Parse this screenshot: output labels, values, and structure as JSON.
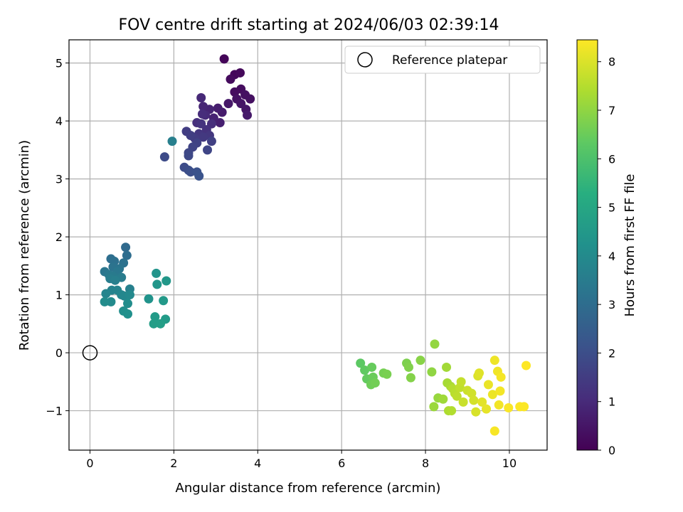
{
  "chart_data": {
    "type": "scatter",
    "title": "FOV centre drift starting at 2024/06/03 02:39:14",
    "xlabel": "Angular distance from reference (arcmin)",
    "ylabel": "Rotation from reference (arcmin)",
    "xlim": [
      -0.5,
      10.9
    ],
    "ylim": [
      -1.68,
      5.4
    ],
    "xticks": [
      0,
      2,
      4,
      6,
      8,
      10
    ],
    "yticks": [
      -1,
      0,
      1,
      2,
      3,
      4,
      5
    ],
    "xtick_labels": [
      "0",
      "2",
      "4",
      "6",
      "8",
      "10"
    ],
    "ytick_labels": [
      "−1",
      "0",
      "1",
      "2",
      "3",
      "4",
      "5"
    ],
    "grid": true,
    "legend": {
      "position": "top-right",
      "entries": [
        "Reference platepar"
      ]
    },
    "colormap": "viridis",
    "colorbar": {
      "label": "Hours from first FF file",
      "range": [
        0,
        8.45
      ],
      "ticks": [
        0,
        1,
        2,
        3,
        4,
        5,
        6,
        7,
        8
      ],
      "tick_labels": [
        "0",
        "1",
        "2",
        "3",
        "4",
        "5",
        "6",
        "7",
        "8"
      ]
    },
    "reference_point": {
      "x": 0,
      "y": 0
    },
    "points": [
      {
        "x": 3.2,
        "y": 5.07,
        "h": 0.1
      },
      {
        "x": 3.45,
        "y": 4.8,
        "h": 0.15
      },
      {
        "x": 3.58,
        "y": 4.83,
        "h": 0.2
      },
      {
        "x": 3.35,
        "y": 4.72,
        "h": 0.25
      },
      {
        "x": 3.6,
        "y": 4.55,
        "h": 0.3
      },
      {
        "x": 3.45,
        "y": 4.5,
        "h": 0.3
      },
      {
        "x": 3.7,
        "y": 4.45,
        "h": 0.35
      },
      {
        "x": 3.82,
        "y": 4.38,
        "h": 0.35
      },
      {
        "x": 3.5,
        "y": 4.38,
        "h": 0.4
      },
      {
        "x": 3.6,
        "y": 4.3,
        "h": 0.45
      },
      {
        "x": 3.72,
        "y": 4.2,
        "h": 0.5
      },
      {
        "x": 3.3,
        "y": 4.3,
        "h": 0.55
      },
      {
        "x": 3.75,
        "y": 4.1,
        "h": 0.6
      },
      {
        "x": 3.15,
        "y": 4.15,
        "h": 0.65
      },
      {
        "x": 3.05,
        "y": 4.22,
        "h": 0.7
      },
      {
        "x": 3.1,
        "y": 3.97,
        "h": 0.75
      },
      {
        "x": 2.95,
        "y": 4.05,
        "h": 0.8
      },
      {
        "x": 2.85,
        "y": 4.2,
        "h": 0.85
      },
      {
        "x": 2.7,
        "y": 4.25,
        "h": 0.9
      },
      {
        "x": 2.65,
        "y": 4.4,
        "h": 0.95
      },
      {
        "x": 2.75,
        "y": 4.1,
        "h": 1.0
      },
      {
        "x": 2.68,
        "y": 4.12,
        "h": 1.05
      },
      {
        "x": 2.9,
        "y": 3.95,
        "h": 1.1
      },
      {
        "x": 2.55,
        "y": 3.97,
        "h": 1.15
      },
      {
        "x": 2.78,
        "y": 3.85,
        "h": 1.2
      },
      {
        "x": 2.65,
        "y": 3.95,
        "h": 1.25
      },
      {
        "x": 2.6,
        "y": 3.78,
        "h": 1.3
      },
      {
        "x": 2.85,
        "y": 3.75,
        "h": 1.35
      },
      {
        "x": 2.7,
        "y": 3.72,
        "h": 1.4
      },
      {
        "x": 2.5,
        "y": 3.7,
        "h": 1.45
      },
      {
        "x": 2.3,
        "y": 3.82,
        "h": 1.5
      },
      {
        "x": 2.4,
        "y": 3.75,
        "h": 1.55
      },
      {
        "x": 2.9,
        "y": 3.65,
        "h": 1.6
      },
      {
        "x": 2.55,
        "y": 3.62,
        "h": 1.65
      },
      {
        "x": 2.45,
        "y": 3.55,
        "h": 1.7
      },
      {
        "x": 2.8,
        "y": 3.5,
        "h": 1.75
      },
      {
        "x": 2.35,
        "y": 3.45,
        "h": 1.8
      },
      {
        "x": 2.35,
        "y": 3.4,
        "h": 1.85
      },
      {
        "x": 1.78,
        "y": 3.38,
        "h": 1.9
      },
      {
        "x": 2.25,
        "y": 3.2,
        "h": 1.95
      },
      {
        "x": 2.35,
        "y": 3.15,
        "h": 2.0
      },
      {
        "x": 2.4,
        "y": 3.12,
        "h": 2.05
      },
      {
        "x": 2.55,
        "y": 3.12,
        "h": 2.1
      },
      {
        "x": 2.6,
        "y": 3.05,
        "h": 2.15
      },
      {
        "x": 1.96,
        "y": 3.65,
        "h": 3.6
      },
      {
        "x": 0.85,
        "y": 1.82,
        "h": 2.9
      },
      {
        "x": 0.88,
        "y": 1.68,
        "h": 3.0
      },
      {
        "x": 0.5,
        "y": 1.62,
        "h": 3.05
      },
      {
        "x": 0.58,
        "y": 1.58,
        "h": 3.1
      },
      {
        "x": 0.8,
        "y": 1.55,
        "h": 3.15
      },
      {
        "x": 0.55,
        "y": 1.48,
        "h": 3.2
      },
      {
        "x": 0.7,
        "y": 1.45,
        "h": 3.25
      },
      {
        "x": 0.35,
        "y": 1.4,
        "h": 3.3
      },
      {
        "x": 0.65,
        "y": 1.4,
        "h": 3.35
      },
      {
        "x": 0.45,
        "y": 1.35,
        "h": 3.4
      },
      {
        "x": 0.55,
        "y": 1.32,
        "h": 3.45
      },
      {
        "x": 0.75,
        "y": 1.3,
        "h": 3.5
      },
      {
        "x": 0.48,
        "y": 1.28,
        "h": 3.55
      },
      {
        "x": 0.6,
        "y": 1.25,
        "h": 3.6
      },
      {
        "x": 0.95,
        "y": 1.1,
        "h": 3.65
      },
      {
        "x": 0.52,
        "y": 1.08,
        "h": 3.7
      },
      {
        "x": 0.65,
        "y": 1.08,
        "h": 3.75
      },
      {
        "x": 0.38,
        "y": 1.02,
        "h": 3.8
      },
      {
        "x": 0.75,
        "y": 1.0,
        "h": 3.85
      },
      {
        "x": 0.82,
        "y": 0.98,
        "h": 3.9
      },
      {
        "x": 0.95,
        "y": 1.0,
        "h": 3.95
      },
      {
        "x": 0.5,
        "y": 0.88,
        "h": 4.0
      },
      {
        "x": 0.35,
        "y": 0.88,
        "h": 4.05
      },
      {
        "x": 0.9,
        "y": 0.85,
        "h": 4.1
      },
      {
        "x": 0.8,
        "y": 0.72,
        "h": 4.15
      },
      {
        "x": 0.9,
        "y": 0.67,
        "h": 4.2
      },
      {
        "x": 1.4,
        "y": 0.93,
        "h": 4.3
      },
      {
        "x": 1.58,
        "y": 1.37,
        "h": 4.35
      },
      {
        "x": 1.6,
        "y": 1.18,
        "h": 4.4
      },
      {
        "x": 1.82,
        "y": 1.24,
        "h": 4.45
      },
      {
        "x": 1.75,
        "y": 0.9,
        "h": 4.5
      },
      {
        "x": 1.55,
        "y": 0.62,
        "h": 4.55
      },
      {
        "x": 1.8,
        "y": 0.58,
        "h": 4.6
      },
      {
        "x": 1.52,
        "y": 0.5,
        "h": 4.65
      },
      {
        "x": 1.68,
        "y": 0.5,
        "h": 4.7
      },
      {
        "x": 6.45,
        "y": -0.18,
        "h": 6.3
      },
      {
        "x": 6.55,
        "y": -0.3,
        "h": 6.35
      },
      {
        "x": 6.6,
        "y": -0.45,
        "h": 6.4
      },
      {
        "x": 6.72,
        "y": -0.25,
        "h": 6.45
      },
      {
        "x": 6.75,
        "y": -0.42,
        "h": 6.5
      },
      {
        "x": 6.7,
        "y": -0.55,
        "h": 6.55
      },
      {
        "x": 6.8,
        "y": -0.52,
        "h": 6.6
      },
      {
        "x": 7.0,
        "y": -0.35,
        "h": 6.65
      },
      {
        "x": 7.08,
        "y": -0.37,
        "h": 6.7
      },
      {
        "x": 7.55,
        "y": -0.18,
        "h": 6.75
      },
      {
        "x": 7.6,
        "y": -0.25,
        "h": 6.8
      },
      {
        "x": 7.65,
        "y": -0.43,
        "h": 6.85
      },
      {
        "x": 7.88,
        "y": -0.13,
        "h": 6.9
      },
      {
        "x": 8.15,
        "y": -0.33,
        "h": 7.0
      },
      {
        "x": 8.22,
        "y": 0.15,
        "h": 7.05
      },
      {
        "x": 8.3,
        "y": -0.78,
        "h": 7.1
      },
      {
        "x": 8.2,
        "y": -0.93,
        "h": 7.15
      },
      {
        "x": 8.42,
        "y": -0.8,
        "h": 7.2
      },
      {
        "x": 8.5,
        "y": -0.25,
        "h": 7.25
      },
      {
        "x": 8.52,
        "y": -0.52,
        "h": 7.3
      },
      {
        "x": 8.6,
        "y": -0.58,
        "h": 7.35
      },
      {
        "x": 8.55,
        "y": -1.0,
        "h": 7.4
      },
      {
        "x": 8.62,
        "y": -1.0,
        "h": 7.45
      },
      {
        "x": 8.65,
        "y": -0.62,
        "h": 7.5
      },
      {
        "x": 8.7,
        "y": -0.7,
        "h": 7.55
      },
      {
        "x": 8.75,
        "y": -0.75,
        "h": 7.6
      },
      {
        "x": 8.82,
        "y": -0.6,
        "h": 7.65
      },
      {
        "x": 8.85,
        "y": -0.5,
        "h": 7.7
      },
      {
        "x": 8.9,
        "y": -0.85,
        "h": 7.75
      },
      {
        "x": 9.0,
        "y": -0.65,
        "h": 7.8
      },
      {
        "x": 9.1,
        "y": -0.7,
        "h": 7.85
      },
      {
        "x": 9.15,
        "y": -0.82,
        "h": 7.9
      },
      {
        "x": 9.2,
        "y": -1.02,
        "h": 7.95
      },
      {
        "x": 9.25,
        "y": -0.4,
        "h": 8.0
      },
      {
        "x": 9.28,
        "y": -0.35,
        "h": 8.05
      },
      {
        "x": 9.35,
        "y": -0.85,
        "h": 8.1
      },
      {
        "x": 9.45,
        "y": -0.97,
        "h": 8.15
      },
      {
        "x": 9.5,
        "y": -0.55,
        "h": 8.2
      },
      {
        "x": 9.6,
        "y": -0.72,
        "h": 8.22
      },
      {
        "x": 9.65,
        "y": -0.13,
        "h": 8.25
      },
      {
        "x": 9.72,
        "y": -0.32,
        "h": 8.28
      },
      {
        "x": 9.75,
        "y": -0.9,
        "h": 8.3
      },
      {
        "x": 9.78,
        "y": -0.66,
        "h": 8.32
      },
      {
        "x": 9.8,
        "y": -0.42,
        "h": 8.35
      },
      {
        "x": 9.65,
        "y": -1.35,
        "h": 8.37
      },
      {
        "x": 9.98,
        "y": -0.95,
        "h": 8.4
      },
      {
        "x": 10.25,
        "y": -0.93,
        "h": 8.42
      },
      {
        "x": 10.35,
        "y": -0.93,
        "h": 8.43
      },
      {
        "x": 10.4,
        "y": -0.22,
        "h": 8.45
      }
    ]
  }
}
